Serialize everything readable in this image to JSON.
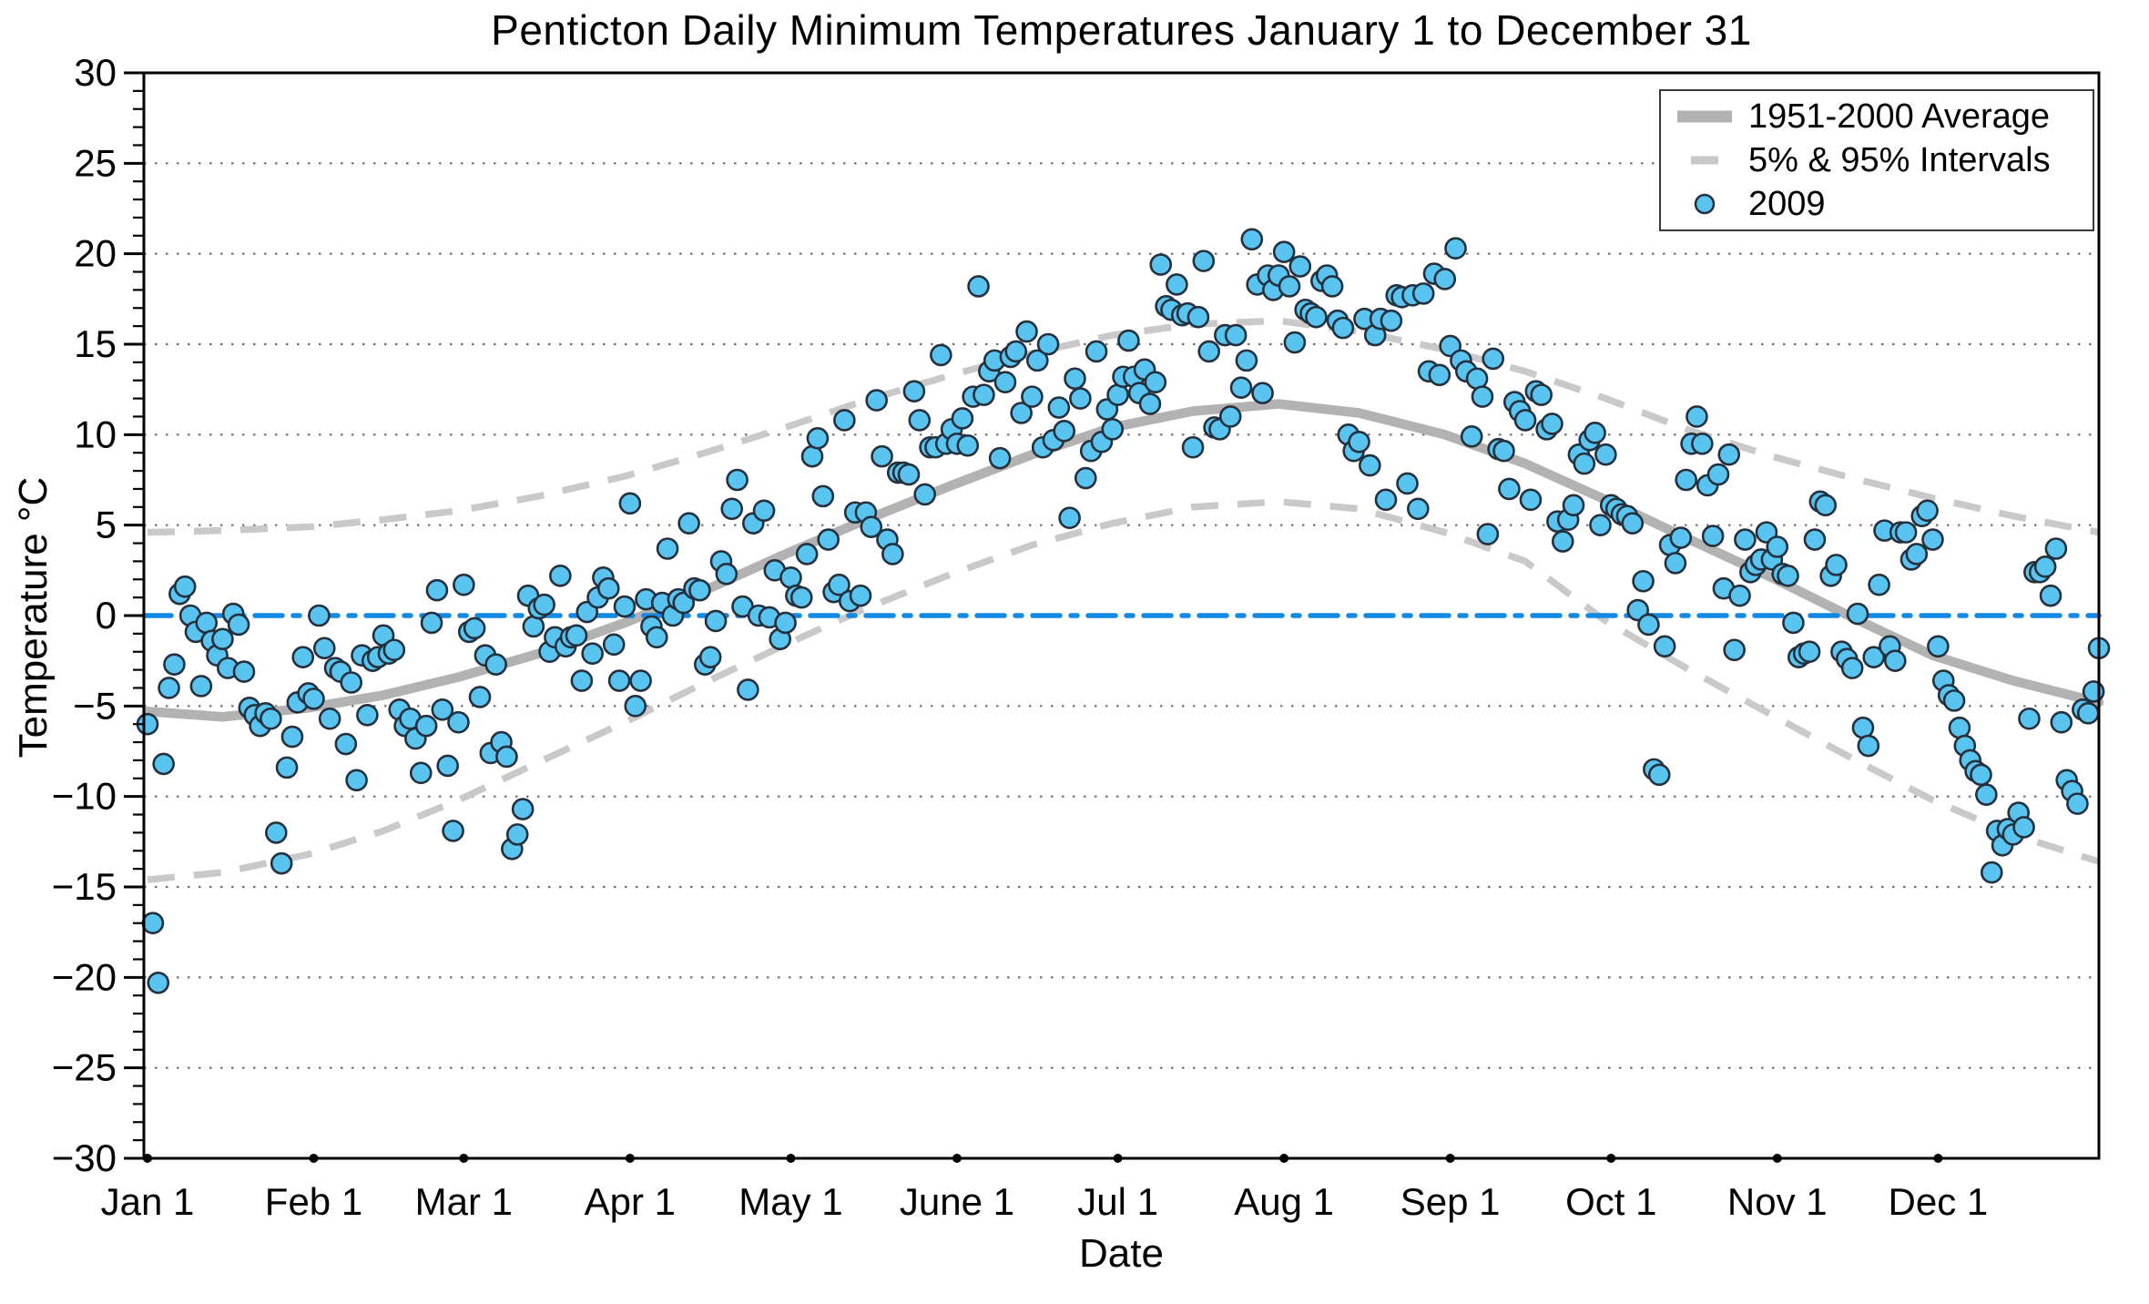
{
  "title": "Penticton Daily Minimum Temperatures January 1 to December 31",
  "axes": {
    "xlabel": "Date",
    "ylabel": "Temperature °C",
    "ylim": [
      -30,
      30
    ],
    "ytick_step": 5,
    "yticks": [
      30,
      25,
      20,
      15,
      10,
      5,
      0,
      -5,
      -10,
      -15,
      -20,
      -25,
      -30
    ],
    "xticks": [
      {
        "day": 1,
        "label": "Jan 1"
      },
      {
        "day": 32,
        "label": "Feb 1"
      },
      {
        "day": 60,
        "label": "Mar 1"
      },
      {
        "day": 91,
        "label": "Apr 1"
      },
      {
        "day": 121,
        "label": "May 1"
      },
      {
        "day": 152,
        "label": "June 1"
      },
      {
        "day": 182,
        "label": "Jul 1"
      },
      {
        "day": 213,
        "label": "Aug 1"
      },
      {
        "day": 244,
        "label": "Sep 1"
      },
      {
        "day": 274,
        "label": "Oct 1"
      },
      {
        "day": 305,
        "label": "Nov 1"
      },
      {
        "day": 335,
        "label": "Dec 1"
      }
    ],
    "grid": "dotted horizontal lines at every 5 degrees"
  },
  "legend": {
    "position": "top-right",
    "items": [
      {
        "key": "average",
        "label": "1951-2000 Average"
      },
      {
        "key": "interval",
        "label": "5% & 95% Intervals"
      },
      {
        "key": "year2009",
        "label": "2009"
      }
    ]
  },
  "colors": {
    "average_line": "#b2b2b2",
    "interval_line": "#c9c9c9",
    "zero_line": "#1289e2",
    "dot_fill": "#5ac4f0",
    "dot_stroke": "#23303e",
    "grid": "#6e6e6e",
    "axis": "#000000",
    "text": "#000000"
  },
  "chart_data": {
    "type": "scatter",
    "title": "Penticton Daily Minimum Temperatures January 1 to December 31",
    "xlabel": "Date",
    "ylabel": "Temperature °C",
    "ylim": [
      -30,
      30
    ],
    "x_unit": "day of year (1-365)",
    "zero_reference_line": {
      "y": 0,
      "style": "blue dash-dot"
    },
    "curves": [
      {
        "name": "1951-2000 Average",
        "style": "thick solid gray",
        "days": [
          1,
          15,
          31,
          45,
          59,
          74,
          90,
          105,
          120,
          135,
          151,
          166,
          181,
          196,
          212,
          227,
          243,
          258,
          273,
          288,
          304,
          319,
          334,
          349,
          365
        ],
        "values": [
          -5.3,
          -5.6,
          -5.1,
          -4.4,
          -3.4,
          -2.1,
          -0.4,
          1.4,
          3.4,
          5.3,
          7.2,
          8.9,
          10.4,
          11.3,
          11.7,
          11.2,
          10.0,
          8.4,
          6.4,
          4.3,
          2.1,
          -0.1,
          -2.2,
          -3.6,
          -4.8
        ]
      },
      {
        "name": "95% Interval",
        "style": "dashed gray",
        "days": [
          1,
          15,
          31,
          45,
          59,
          74,
          90,
          105,
          120,
          135,
          151,
          166,
          181,
          196,
          212,
          227,
          243,
          258,
          273,
          288,
          304,
          319,
          334,
          349,
          365
        ],
        "values": [
          4.6,
          4.7,
          4.9,
          5.3,
          5.8,
          6.6,
          7.7,
          9.0,
          10.4,
          11.9,
          13.3,
          14.5,
          15.5,
          16.1,
          16.3,
          15.7,
          14.7,
          13.5,
          12.0,
          10.3,
          8.8,
          7.6,
          6.5,
          5.5,
          4.6
        ]
      },
      {
        "name": "5% Interval",
        "style": "dashed gray",
        "days": [
          1,
          15,
          31,
          45,
          59,
          74,
          90,
          105,
          120,
          135,
          151,
          166,
          181,
          196,
          212,
          227,
          243,
          258,
          273,
          288,
          304,
          319,
          334,
          349,
          365
        ],
        "values": [
          -14.6,
          -14.2,
          -13.2,
          -11.9,
          -10.2,
          -8.1,
          -5.9,
          -3.7,
          -1.6,
          0.4,
          2.3,
          3.9,
          5.1,
          6.0,
          6.3,
          5.9,
          4.6,
          3.0,
          -0.3,
          -2.9,
          -5.5,
          -7.9,
          -10.2,
          -12.1,
          -13.6
        ]
      }
    ],
    "series_2009": {
      "name": "2009",
      "note": "daily minimum temperature, day 1 = Jan 1, sequential days",
      "months": [
        {
          "month": "Jan",
          "values": [
            -6.0,
            -17.0,
            -20.3,
            -8.2,
            -4.0,
            -2.7,
            1.2,
            1.6,
            0.0,
            -0.9,
            -3.9,
            -0.4,
            -1.4,
            -2.2,
            -1.3,
            -2.9,
            0.1,
            -0.5,
            -3.1,
            -5.1,
            -5.5,
            -6.1,
            -5.4,
            -5.7,
            -12.0,
            -13.7,
            -8.4,
            -6.7,
            -4.8,
            -2.3,
            -4.3
          ]
        },
        {
          "month": "Feb",
          "values": [
            -4.6,
            0.0,
            -1.8,
            -5.7,
            -2.9,
            -3.1,
            -7.1,
            -3.7,
            -9.1,
            -2.2,
            -5.5,
            -2.5,
            -2.3,
            -1.1,
            -2.1,
            -1.9,
            -5.2,
            -6.1,
            -5.7,
            -6.8,
            -8.7,
            -6.1,
            -0.4,
            1.4,
            -5.2,
            -8.3,
            -11.9,
            -5.9
          ]
        },
        {
          "month": "Mar",
          "values": [
            1.7,
            -0.9,
            -0.7,
            -4.5,
            -2.2,
            -7.6,
            -2.7,
            -7.0,
            -7.8,
            -12.9,
            -12.1,
            -10.7,
            1.1,
            -0.6,
            0.4,
            0.6,
            -2.0,
            -1.2,
            2.2,
            -1.7,
            -1.2,
            -1.1,
            -3.6,
            0.2,
            -2.1,
            1.0,
            2.1,
            1.5,
            -1.6,
            -3.6,
            0.5
          ]
        },
        {
          "month": "Apr",
          "values": [
            6.2,
            -5.0,
            -3.6,
            0.9,
            -0.6,
            -1.2,
            0.7,
            3.7,
            0.0,
            0.9,
            0.7,
            5.1,
            1.5,
            1.4,
            -2.7,
            -2.3,
            -0.3,
            3.0,
            2.3,
            5.9,
            7.5,
            0.5,
            -4.1,
            5.1,
            0.0,
            5.8,
            -0.1,
            2.5,
            -1.3,
            -0.4
          ]
        },
        {
          "month": "May",
          "values": [
            2.1,
            1.1,
            1.0,
            3.4,
            8.8,
            9.8,
            6.6,
            4.2,
            1.3,
            1.7,
            10.8,
            0.8,
            5.7,
            1.1,
            5.7,
            4.9,
            11.9,
            8.8,
            4.2,
            3.4,
            7.9,
            7.9,
            7.8,
            12.4,
            10.8,
            6.7,
            9.3,
            9.3,
            14.4,
            9.5,
            10.3
          ]
        },
        {
          "month": "Jun",
          "values": [
            9.5,
            10.9,
            9.4,
            12.1,
            18.2,
            12.2,
            13.5,
            14.1,
            8.7,
            12.9,
            14.3,
            14.6,
            11.2,
            15.7,
            12.1,
            14.1,
            9.3,
            15.0,
            9.7,
            11.5,
            10.2,
            5.4,
            13.1,
            12.0,
            7.6,
            9.1,
            14.6,
            9.6,
            11.4,
            10.3
          ]
        },
        {
          "month": "Jul",
          "values": [
            12.2,
            13.2,
            15.2,
            13.2,
            12.3,
            13.6,
            11.7,
            12.9,
            19.4,
            17.1,
            16.9,
            18.3,
            16.6,
            16.7,
            9.3,
            16.5,
            19.6,
            14.6,
            10.4,
            10.3,
            15.5,
            11.0,
            15.5,
            12.6,
            14.1,
            20.8,
            18.3,
            12.3,
            18.8,
            18.0,
            18.8
          ]
        },
        {
          "month": "Aug",
          "values": [
            20.1,
            18.2,
            15.1,
            19.3,
            16.9,
            16.7,
            16.5,
            18.5,
            18.8,
            18.2,
            16.3,
            15.9,
            10.0,
            9.1,
            9.6,
            16.4,
            8.3,
            15.5,
            16.4,
            6.4,
            16.3,
            17.7,
            17.6,
            7.3,
            17.7,
            5.9,
            17.8,
            13.5,
            18.9,
            13.3,
            18.6
          ]
        },
        {
          "month": "Sep",
          "values": [
            14.9,
            20.3,
            14.1,
            13.5,
            9.9,
            13.1,
            12.1,
            4.5,
            14.2,
            9.2,
            9.1,
            7.0,
            11.8,
            11.3,
            10.8,
            6.4,
            12.4,
            12.2,
            10.3,
            10.6,
            5.2,
            4.1,
            5.3,
            6.1,
            8.9,
            8.4,
            9.7,
            10.1,
            5.0,
            8.9
          ]
        },
        {
          "month": "Oct",
          "values": [
            6.1,
            5.9,
            5.6,
            5.5,
            5.1,
            0.3,
            1.9,
            -0.5,
            -8.5,
            -8.8,
            -1.7,
            3.9,
            2.9,
            4.3,
            7.5,
            9.5,
            11.0,
            9.5,
            7.2,
            4.4,
            7.8,
            1.5,
            8.9,
            -1.9,
            1.1,
            4.2,
            2.4,
            2.8,
            3.1,
            4.6,
            3.1
          ]
        },
        {
          "month": "Nov",
          "values": [
            3.8,
            2.3,
            2.2,
            -0.4,
            -2.3,
            -2.1,
            -2.0,
            4.2,
            6.3,
            6.1,
            2.2,
            2.8,
            -2.0,
            -2.4,
            -2.9,
            0.1,
            -6.2,
            -7.2,
            -2.3,
            1.7,
            4.7,
            -1.7,
            -2.5,
            4.6,
            4.6,
            3.1,
            3.4,
            5.5,
            5.8,
            4.2
          ]
        },
        {
          "month": "Dec",
          "values": [
            -1.7,
            -3.6,
            -4.4,
            -4.7,
            -6.2,
            -7.2,
            -8.0,
            -8.6,
            -8.8,
            -9.9,
            -14.2,
            -11.9,
            -12.7,
            -11.8,
            -12.1,
            -10.9,
            -11.7,
            -5.7,
            2.4,
            2.4,
            2.7,
            1.1,
            3.7,
            -5.9,
            -9.1,
            -9.7,
            -10.4,
            -5.2,
            -5.4,
            -4.2,
            -1.8
          ]
        }
      ]
    }
  }
}
